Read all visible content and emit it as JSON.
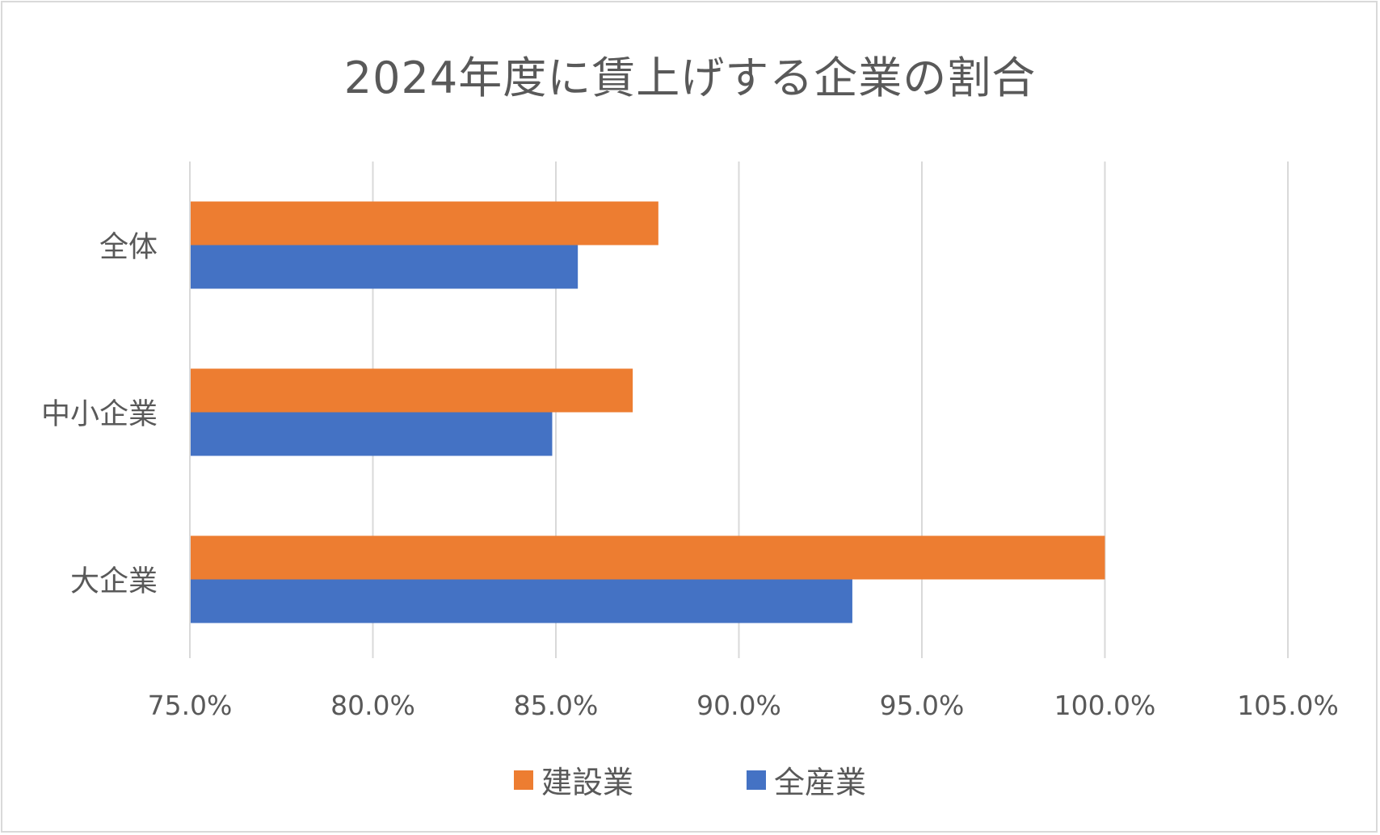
{
  "chart_data": {
    "type": "bar",
    "orientation": "horizontal",
    "title": "2024年度に賃上げする企業の割合",
    "categories": [
      "全体",
      "中小企業",
      "大企業"
    ],
    "series": [
      {
        "name": "建設業",
        "color": "#ED7D31",
        "values": [
          87.8,
          87.1,
          100.0
        ]
      },
      {
        "name": "全産業",
        "color": "#4472C4",
        "values": [
          85.6,
          84.9,
          93.1
        ]
      }
    ],
    "xlim": [
      75.0,
      105.0
    ],
    "xticks": [
      "75.0%",
      "80.0%",
      "85.0%",
      "90.0%",
      "95.0%",
      "100.0%",
      "105.0%"
    ],
    "grid": true,
    "legend_position": "bottom"
  }
}
